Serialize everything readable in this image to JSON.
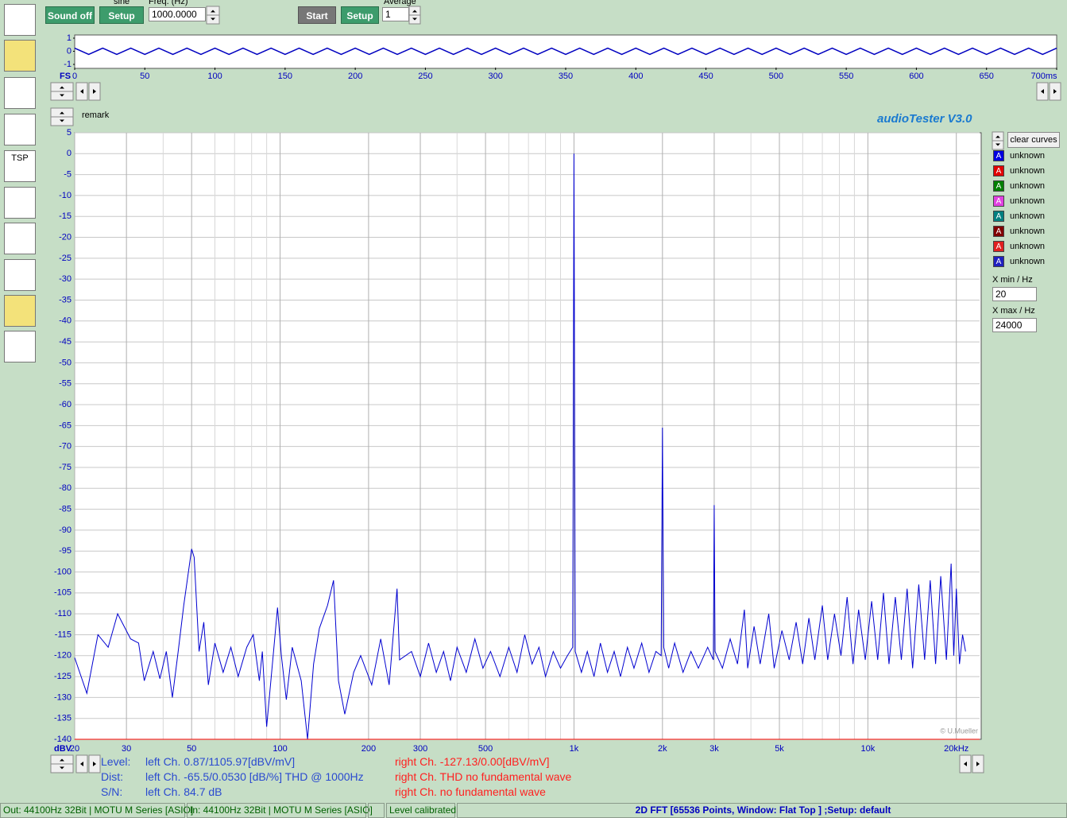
{
  "toolbar": {
    "sine_label": "sine",
    "sound_button": "Sound off",
    "setup_button": "Setup",
    "freq_label": "Freq. (Hz)",
    "freq_value": "1000.0000",
    "start_button": "Start",
    "setup2_button": "Setup",
    "average_label": "Average",
    "average_value": "1",
    "tsp_icon": "TSP"
  },
  "remark": "remark",
  "app_title": "audioTester  V3.0",
  "side_panel": {
    "clear_button": "clear curves",
    "curves": [
      {
        "icon": "A",
        "label": "unknown",
        "color": "#0000e0"
      },
      {
        "icon": "A",
        "label": "unknown",
        "color": "#e00000"
      },
      {
        "icon": "A",
        "label": "unknown",
        "color": "#008000"
      },
      {
        "icon": "A",
        "label": "unknown",
        "color": "#e040e0"
      },
      {
        "icon": "A",
        "label": "unknown",
        "color": "#008080"
      },
      {
        "icon": "A",
        "label": "unknown",
        "color": "#800000"
      },
      {
        "icon": "A",
        "label": "unknown",
        "color": "#e02020"
      },
      {
        "icon": "A",
        "label": "unknown",
        "color": "#2020c0"
      }
    ],
    "xmin_label": "X min / Hz",
    "xmin_value": "20",
    "xmax_label": "X max / Hz",
    "xmax_value": "24000"
  },
  "info": [
    {
      "label": "Level:",
      "left": "left Ch. 0.87/1105.97[dBV/mV]",
      "right": "right Ch. -127.13/0.00[dBV/mV]"
    },
    {
      "label": "Dist:",
      "left": "left Ch. -65.5/0.0530 [dB/%] THD @ 1000Hz",
      "right": "right Ch. THD no fundamental wave"
    },
    {
      "label": "S/N:",
      "left": "left Ch. 84.7 dB",
      "right": "right Ch.  no fundamental wave"
    }
  ],
  "status_bar": {
    "out": "Out: 44100Hz 32Bit  | MOTU M Series [ASIO]",
    "in": "In: 44100Hz 32Bit  | MOTU M Series [ASIO]",
    "calibration": "Level calibrated",
    "mode": "2D FFT [65536 Points, Window: Flat Top ] ;Setup:  default"
  },
  "chart_data": [
    {
      "type": "line",
      "xscale": "log",
      "grid": true,
      "ylabel": "dBV",
      "annotation": "© U.Mueller",
      "xlim": [
        20,
        24000
      ],
      "ylim": [
        -140,
        5
      ],
      "xticks": [
        20,
        30,
        50,
        100,
        200,
        300,
        500,
        {
          "value": 1000,
          "label": "1k"
        },
        {
          "value": 2000,
          "label": "2k"
        },
        {
          "value": 3000,
          "label": "3k"
        },
        {
          "value": 5000,
          "label": "5k"
        },
        {
          "value": 10000,
          "label": "10k"
        },
        {
          "value": 20000,
          "label": "20kHz"
        }
      ],
      "xminor_ticks": [
        40,
        60,
        70,
        80,
        90,
        400,
        600,
        700,
        800,
        900,
        4000,
        6000,
        7000,
        8000,
        9000
      ],
      "yticks": [
        5,
        0,
        -5,
        -10,
        -15,
        -20,
        -25,
        -30,
        -35,
        -40,
        -45,
        -50,
        -55,
        -60,
        -65,
        -70,
        -75,
        -80,
        -85,
        -90,
        -95,
        -100,
        -105,
        -110,
        -115,
        -120,
        -125,
        -130,
        -135,
        -140
      ],
      "series": [
        {
          "color": "#0000d0",
          "x": [
            20,
            22,
            24,
            26,
            28,
            31,
            33,
            34.5,
            37,
            39,
            41,
            43,
            45,
            47,
            50,
            51,
            53,
            55,
            57,
            60,
            64,
            68,
            72,
            77,
            81,
            85,
            87,
            90,
            95,
            98,
            101,
            105,
            110,
            118,
            124,
            130,
            136,
            145,
            152,
            158,
            166,
            178,
            188,
            205,
            220,
            235,
            250,
            255,
            280,
            300,
            320,
            340,
            360,
            380,
            400,
            430,
            460,
            490,
            520,
            560,
            600,
            640,
            680,
            720,
            760,
            800,
            850,
            900,
            950,
            990,
            1000,
            1010,
            1060,
            1110,
            1170,
            1230,
            1300,
            1370,
            1440,
            1520,
            1600,
            1700,
            1800,
            1900,
            1980,
            2000,
            2020,
            2100,
            2200,
            2350,
            2500,
            2650,
            2850,
            2980,
            3000,
            3020,
            3200,
            3400,
            3600,
            3800,
            3900,
            4100,
            4300,
            4600,
            4800,
            5100,
            5400,
            5700,
            6000,
            6300,
            6600,
            7000,
            7300,
            7700,
            8100,
            8500,
            8900,
            9300,
            9800,
            10300,
            10800,
            11300,
            11800,
            12400,
            13000,
            13600,
            14200,
            14900,
            15600,
            16300,
            17000,
            17700,
            18500,
            19200,
            19600,
            20000,
            20500,
            21000,
            21500
          ],
          "values": [
            -120.5,
            -129,
            -115,
            -118,
            -110,
            -116,
            -117,
            -126,
            -119,
            -125.5,
            -119,
            -130,
            -119,
            -108,
            -94.5,
            -96.5,
            -119,
            -112,
            -127,
            -117,
            -124,
            -118,
            -125,
            -118,
            -115,
            -126,
            -119,
            -137,
            -119,
            -108.5,
            -120,
            -130.5,
            -118,
            -126,
            -140,
            -122,
            -113.5,
            -108,
            -102,
            -126,
            -134,
            -124,
            -120,
            -127,
            -116,
            -127,
            -104,
            -121,
            -119,
            -125,
            -117,
            -124,
            -119,
            -126,
            -118,
            -124,
            -116,
            -123,
            -119,
            -125,
            -118,
            -124,
            -115,
            -122,
            -118,
            -125,
            -119,
            -123,
            -120,
            -118,
            0,
            -119,
            -124,
            -119,
            -125,
            -117,
            -124,
            -119,
            -125,
            -118,
            -123,
            -117,
            -124,
            -119,
            -120,
            -65.5,
            -118,
            -123,
            -117,
            -124,
            -119,
            -123,
            -118,
            -121,
            -84,
            -119,
            -123,
            -116,
            -122,
            -109,
            -123,
            -113,
            -122,
            -110,
            -123,
            -114,
            -121,
            -112,
            -122,
            -111,
            -121,
            -108,
            -121,
            -110,
            -120,
            -106,
            -122,
            -109,
            -121,
            -107,
            -121,
            -105,
            -122,
            -106,
            -121,
            -104,
            -123,
            -103,
            -121,
            -102,
            -122,
            -101,
            -121,
            -98,
            -120,
            -104,
            -122,
            -115,
            -119
          ]
        },
        {
          "color": "#ff0000",
          "x": [
            20,
            24000
          ],
          "values": [
            -140,
            -140
          ]
        }
      ]
    },
    {
      "type": "line",
      "grid": false,
      "ylabel": "FS",
      "xlim": [
        0,
        700
      ],
      "ylim": [
        -1,
        1
      ],
      "xticks": [
        0,
        50,
        100,
        150,
        200,
        250,
        300,
        350,
        400,
        450,
        500,
        550,
        600,
        650,
        {
          "value": 700,
          "label": "700ms"
        }
      ],
      "yticks": [
        1,
        0,
        -1
      ],
      "series": [
        {
          "color": "#0000c0",
          "x": [
            0,
            10,
            20,
            30,
            40,
            50,
            60,
            70,
            80,
            90,
            100,
            110,
            120,
            130,
            140,
            150,
            160,
            170,
            180,
            190,
            200,
            210,
            220,
            230,
            240,
            250,
            260,
            270,
            280,
            290,
            300,
            310,
            320,
            330,
            340,
            350,
            360,
            370,
            380,
            390,
            400,
            410,
            420,
            430,
            440,
            450,
            460,
            470,
            480,
            490,
            500,
            510,
            520,
            530,
            540,
            550,
            560,
            570,
            580,
            590,
            600,
            610,
            620,
            630,
            640,
            650,
            660,
            670,
            680,
            690,
            700
          ],
          "values": [
            0.24,
            -0.24,
            0.24,
            -0.24,
            0.24,
            -0.24,
            0.24,
            -0.24,
            0.24,
            -0.24,
            0.24,
            -0.24,
            0.24,
            -0.24,
            0.24,
            -0.24,
            0.24,
            -0.24,
            0.24,
            -0.24,
            0.24,
            -0.24,
            0.24,
            -0.24,
            0.24,
            -0.24,
            0.24,
            -0.24,
            0.24,
            -0.24,
            0.24,
            -0.24,
            0.24,
            -0.24,
            0.24,
            -0.24,
            0.24,
            -0.24,
            0.24,
            -0.24,
            0.24,
            -0.24,
            0.24,
            -0.24,
            0.24,
            -0.24,
            0.24,
            -0.24,
            0.24,
            -0.24,
            0.24,
            -0.24,
            0.24,
            -0.24,
            0.24,
            -0.24,
            0.24,
            -0.24,
            0.24,
            -0.24,
            0.24,
            -0.24,
            0.24,
            -0.24,
            0.24,
            -0.24,
            0.24,
            -0.24,
            0.24,
            -0.24,
            0.24
          ]
        }
      ]
    }
  ]
}
